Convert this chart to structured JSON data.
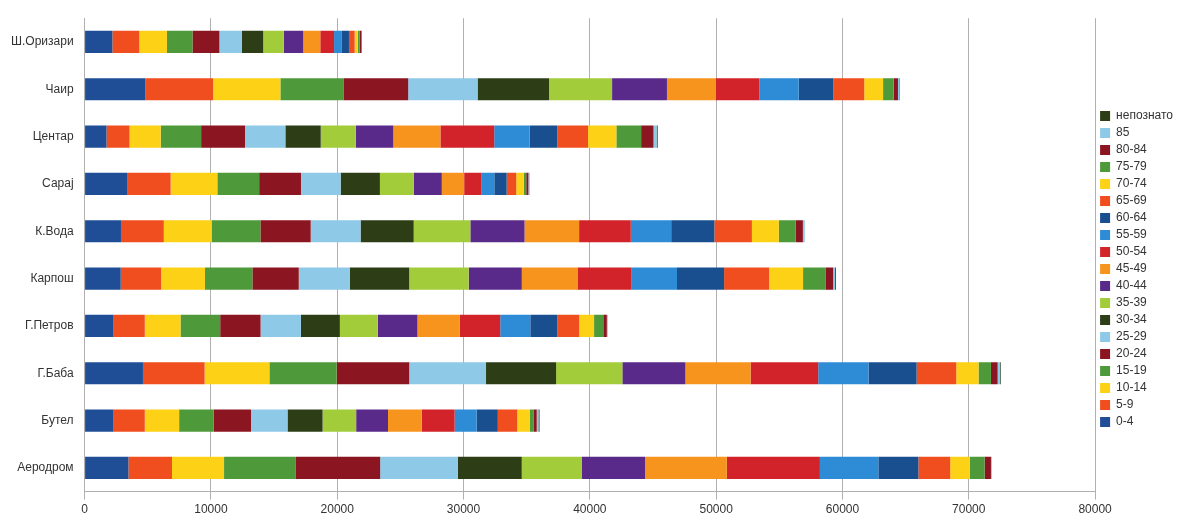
{
  "chart_data": {
    "type": "bar",
    "orientation": "horizontal",
    "stacked": true,
    "grid": "x",
    "legend": "right",
    "categories": [
      "Ш.Оризари",
      "Чаир",
      "Центар",
      "Сарај",
      "К.Вода",
      "Карпош",
      "Г.Петров",
      "Г.Баба",
      "Бутел",
      "Аеродром"
    ],
    "xlim": [
      0,
      80000
    ],
    "xticks": [
      0,
      10000,
      20000,
      30000,
      40000,
      50000,
      60000,
      70000,
      80000
    ],
    "series": [
      {
        "name": "0-4",
        "color": "#1f4e96",
        "values": [
          2200,
          4820,
          1735,
          3360,
          2880,
          2860,
          2295,
          4620,
          2295,
          3470
        ]
      },
      {
        "name": "5-9",
        "color": "#f04e1e",
        "values": [
          2130,
          5350,
          1820,
          3450,
          3390,
          3195,
          2470,
          4880,
          2470,
          3450
        ]
      },
      {
        "name": "10-14",
        "color": "#fcd116",
        "values": [
          2190,
          5330,
          2470,
          3700,
          3780,
          3475,
          2830,
          5130,
          2720,
          4120
        ]
      },
      {
        "name": "15-19",
        "color": "#4e9a3a",
        "values": [
          2020,
          4990,
          3200,
          3310,
          3870,
          3755,
          3140,
          5325,
          2720,
          5690
        ]
      },
      {
        "name": "20-24",
        "color": "#8b1520",
        "values": [
          2130,
          5130,
          3475,
          3310,
          3980,
          3670,
          3195,
          5745,
          2970,
          6670
        ]
      },
      {
        "name": "25-29",
        "color": "#8ecae8",
        "values": [
          1790,
          5490,
          3195,
          3140,
          3950,
          4035,
          3195,
          6080,
          2890,
          6140
        ]
      },
      {
        "name": "30-34",
        "color": "#2d3e16",
        "values": [
          1680,
          5660,
          2800,
          3110,
          4205,
          4710,
          3085,
          5550,
          2775,
          5070
        ]
      },
      {
        "name": "35-39",
        "color": "#a3cc3a",
        "values": [
          1630,
          4990,
          2775,
          2690,
          4485,
          4710,
          3000,
          5245,
          2660,
          4740
        ]
      },
      {
        "name": "40-44",
        "color": "#5a2a8a",
        "values": [
          1540,
          4345,
          2970,
          2210,
          4290,
          4205,
          3140,
          4990,
          2520,
          5020
        ]
      },
      {
        "name": "45-49",
        "color": "#f7941d",
        "values": [
          1350,
          3840,
          3730,
          1770,
          4320,
          4405,
          3360,
          5160,
          2665,
          6475
        ]
      },
      {
        "name": "50-54",
        "color": "#d2232a",
        "values": [
          1090,
          3480,
          4260,
          1345,
          4090,
          4290,
          3195,
          5355,
          2610,
          7370
        ]
      },
      {
        "name": "55-59",
        "color": "#2e8bd6",
        "values": [
          620,
          3110,
          2800,
          1040,
          3200,
          3590,
          2380,
          3980,
          1740,
          4625
        ]
      },
      {
        "name": "60-64",
        "color": "#1a4f8f",
        "values": [
          560,
          2750,
          2190,
          980,
          3420,
          3730,
          2130,
          3810,
          1680,
          3170
        ]
      },
      {
        "name": "65-69",
        "color": "#f04e1e",
        "values": [
          450,
          2440,
          2440,
          760,
          2970,
          3560,
          1740,
          3140,
          1540,
          2520
        ]
      },
      {
        "name": "70-74",
        "color": "#fcd116",
        "values": [
          250,
          1490,
          2240,
          590,
          2130,
          2690,
          1180,
          1765,
          980,
          1540
        ]
      },
      {
        "name": "75-79",
        "color": "#4e9a3a",
        "values": [
          140,
          840,
          1960,
          200,
          1345,
          1770,
          730,
          980,
          335,
          1180
        ]
      },
      {
        "name": "80-84",
        "color": "#8b1520",
        "values": [
          140,
          340,
          980,
          170,
          560,
          615,
          280,
          530,
          225,
          505
        ]
      },
      {
        "name": "85",
        "color": "#8ecae8",
        "values": [
          null,
          100,
          250,
          110,
          150,
          150,
          80,
          200,
          140,
          50
        ]
      },
      {
        "name": "непознато",
        "color": "#2d3e16",
        "values": [
          30,
          40,
          80,
          null,
          null,
          70,
          null,
          60,
          80,
          20
        ]
      }
    ]
  }
}
